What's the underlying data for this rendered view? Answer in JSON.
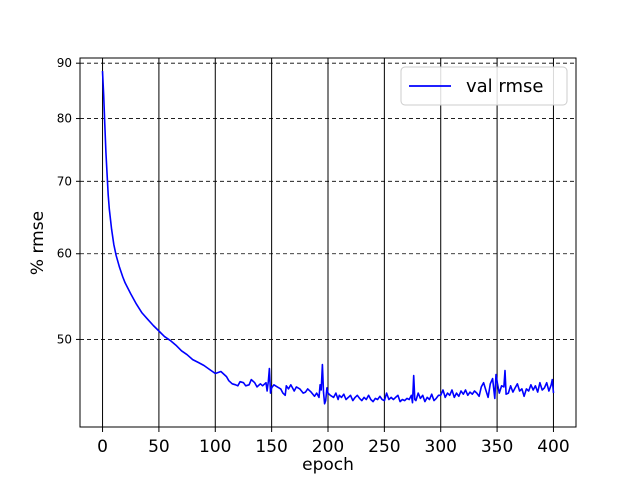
{
  "chart_data": {
    "type": "line",
    "xlabel": "epoch",
    "ylabel": "% rmse",
    "y_scale": "log",
    "xlim": [
      -20,
      420
    ],
    "ylim": [
      41.5,
      91
    ],
    "x_ticks": [
      0,
      50,
      100,
      150,
      200,
      250,
      300,
      350,
      400
    ],
    "y_ticks": [
      50,
      60,
      70,
      80,
      90
    ],
    "x_grid": "solid",
    "y_grid": "dashed",
    "legend_position": "top-right",
    "series": [
      {
        "name": "val rmse",
        "color": "#0000ff",
        "points": [
          [
            0,
            88.5
          ],
          [
            1,
            84
          ],
          [
            2,
            79
          ],
          [
            3,
            74.5
          ],
          [
            4,
            71
          ],
          [
            5,
            68
          ],
          [
            6,
            66
          ],
          [
            8,
            63.2
          ],
          [
            10,
            61.2
          ],
          [
            12,
            59.8
          ],
          [
            15,
            58.3
          ],
          [
            18,
            57.1
          ],
          [
            20,
            56.4
          ],
          [
            25,
            55.1
          ],
          [
            30,
            53.9
          ],
          [
            35,
            52.9
          ],
          [
            40,
            52.2
          ],
          [
            45,
            51.5
          ],
          [
            50,
            50.9
          ],
          [
            55,
            50.3
          ],
          [
            60,
            49.9
          ],
          [
            65,
            49.4
          ],
          [
            70,
            48.8
          ],
          [
            75,
            48.4
          ],
          [
            80,
            47.9
          ],
          [
            85,
            47.6
          ],
          [
            90,
            47.3
          ],
          [
            95,
            46.9
          ],
          [
            100,
            46.5
          ],
          [
            105,
            46.7
          ],
          [
            110,
            46.2
          ],
          [
            112,
            45.8
          ],
          [
            115,
            45.5
          ],
          [
            118,
            45.4
          ],
          [
            120,
            45.3
          ],
          [
            122,
            45.7
          ],
          [
            125,
            45.6
          ],
          [
            127,
            45.3
          ],
          [
            130,
            45.4
          ],
          [
            132,
            45.9
          ],
          [
            135,
            45.6
          ],
          [
            137,
            45.2
          ],
          [
            140,
            45.5
          ],
          [
            142,
            45.3
          ],
          [
            145,
            45.6
          ],
          [
            146,
            44.8
          ],
          [
            147,
            45.7
          ],
          [
            148,
            47.0
          ],
          [
            149,
            44.6
          ],
          [
            150,
            45.1
          ],
          [
            152,
            45.4
          ],
          [
            155,
            45.2
          ],
          [
            158,
            45.0
          ],
          [
            160,
            44.6
          ],
          [
            162,
            44.4
          ],
          [
            163,
            45.3
          ],
          [
            165,
            45.0
          ],
          [
            167,
            45.4
          ],
          [
            170,
            44.8
          ],
          [
            172,
            45.2
          ],
          [
            175,
            45.0
          ],
          [
            178,
            44.6
          ],
          [
            180,
            44.7
          ],
          [
            182,
            45.0
          ],
          [
            185,
            44.7
          ],
          [
            188,
            44.3
          ],
          [
            190,
            44.6
          ],
          [
            192,
            44.2
          ],
          [
            193,
            45.4
          ],
          [
            194,
            44.9
          ],
          [
            195,
            47.4
          ],
          [
            196,
            44.7
          ],
          [
            197,
            43.6
          ],
          [
            198,
            43.9
          ],
          [
            199,
            45.1
          ],
          [
            200,
            44.6
          ],
          [
            202,
            44.4
          ],
          [
            205,
            44.2
          ],
          [
            207,
            44.6
          ],
          [
            209,
            44.0
          ],
          [
            210,
            44.4
          ],
          [
            212,
            44.2
          ],
          [
            214,
            44.5
          ],
          [
            216,
            44.0
          ],
          [
            218,
            44.2
          ],
          [
            220,
            44.4
          ],
          [
            222,
            43.9
          ],
          [
            224,
            44.2
          ],
          [
            226,
            44.4
          ],
          [
            228,
            44.1
          ],
          [
            230,
            43.9
          ],
          [
            232,
            44.2
          ],
          [
            234,
            44.0
          ],
          [
            236,
            44.4
          ],
          [
            238,
            44.0
          ],
          [
            240,
            43.8
          ],
          [
            242,
            44.1
          ],
          [
            244,
            44.0
          ],
          [
            246,
            44.3
          ],
          [
            248,
            44.0
          ],
          [
            250,
            43.9
          ],
          [
            252,
            44.6
          ],
          [
            254,
            44.0
          ],
          [
            256,
            44.2
          ],
          [
            258,
            44.0
          ],
          [
            260,
            44.2
          ],
          [
            262,
            44.4
          ],
          [
            264,
            43.8
          ],
          [
            266,
            44.0
          ],
          [
            268,
            43.9
          ],
          [
            270,
            44.1
          ],
          [
            272,
            44.0
          ],
          [
            274,
            44.4
          ],
          [
            275,
            43.7
          ],
          [
            276,
            46.3
          ],
          [
            277,
            44.0
          ],
          [
            278,
            43.9
          ],
          [
            280,
            44.6
          ],
          [
            282,
            44.1
          ],
          [
            284,
            44.4
          ],
          [
            286,
            43.8
          ],
          [
            288,
            44.2
          ],
          [
            290,
            44.0
          ],
          [
            292,
            44.5
          ],
          [
            294,
            43.9
          ],
          [
            296,
            44.1
          ],
          [
            298,
            44.4
          ],
          [
            300,
            44.4
          ],
          [
            302,
            44.9
          ],
          [
            304,
            44.2
          ],
          [
            306,
            44.6
          ],
          [
            308,
            44.4
          ],
          [
            310,
            44.9
          ],
          [
            312,
            44.2
          ],
          [
            314,
            44.6
          ],
          [
            316,
            44.3
          ],
          [
            318,
            44.8
          ],
          [
            320,
            44.5
          ],
          [
            322,
            44.9
          ],
          [
            324,
            44.4
          ],
          [
            326,
            44.7
          ],
          [
            328,
            44.5
          ],
          [
            330,
            44.8
          ],
          [
            332,
            44.6
          ],
          [
            334,
            44.3
          ],
          [
            336,
            45.2
          ],
          [
            338,
            45.6
          ],
          [
            340,
            44.9
          ],
          [
            342,
            44.2
          ],
          [
            344,
            45.5
          ],
          [
            346,
            46.0
          ],
          [
            348,
            44.1
          ],
          [
            349,
            46.4
          ],
          [
            350,
            45.7
          ],
          [
            352,
            44.6
          ],
          [
            354,
            45.3
          ],
          [
            356,
            45.2
          ],
          [
            357,
            46.8
          ],
          [
            358,
            44.5
          ],
          [
            360,
            44.6
          ],
          [
            362,
            45.3
          ],
          [
            364,
            44.7
          ],
          [
            366,
            45.1
          ],
          [
            368,
            45.5
          ],
          [
            370,
            44.8
          ],
          [
            372,
            45.0
          ],
          [
            374,
            44.3
          ],
          [
            376,
            45.0
          ],
          [
            378,
            44.8
          ],
          [
            380,
            45.4
          ],
          [
            382,
            44.9
          ],
          [
            384,
            45.3
          ],
          [
            386,
            44.7
          ],
          [
            388,
            45.6
          ],
          [
            390,
            44.9
          ],
          [
            392,
            45.1
          ],
          [
            394,
            45.6
          ],
          [
            396,
            44.8
          ],
          [
            398,
            45.4
          ],
          [
            399,
            45.9
          ],
          [
            400,
            44.6
          ]
        ]
      }
    ]
  }
}
